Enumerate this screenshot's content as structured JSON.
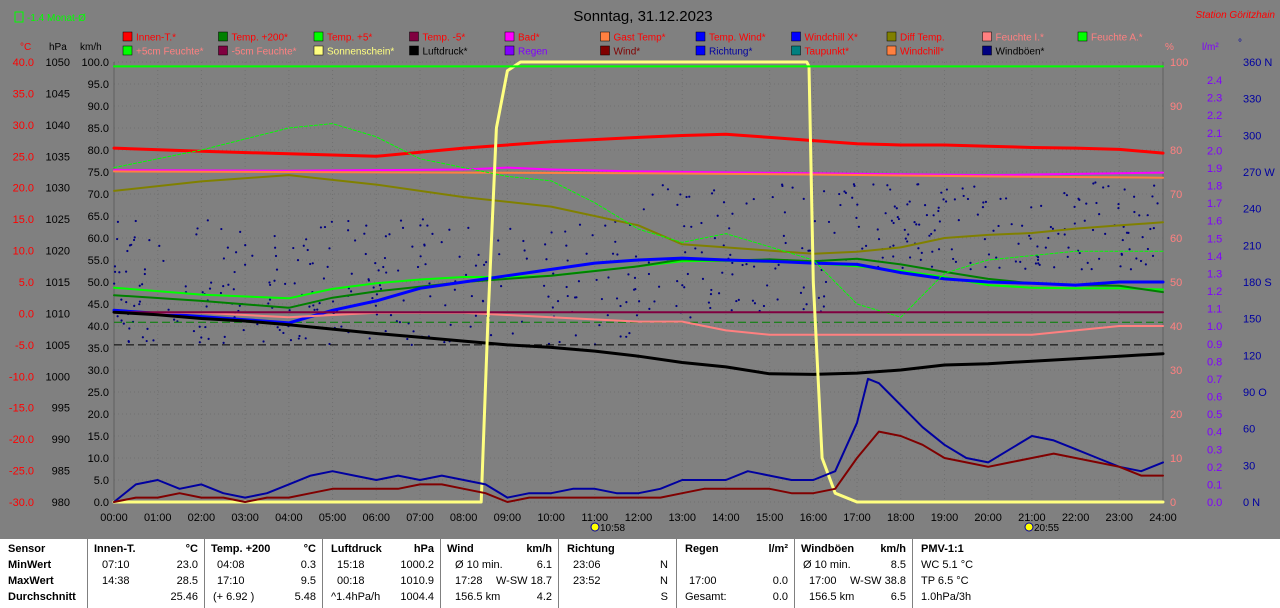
{
  "header": {
    "month_indicator": "-1.4 Monat-Ø",
    "date_title": "Sonntag, 31.12.2023",
    "station": "Station Göritzhain"
  },
  "legend": [
    {
      "label": "Innen-T.*",
      "color": "#ff0000",
      "text": "#ff0000"
    },
    {
      "label": "Temp. +200*",
      "color": "#008000",
      "text": "#ff0000"
    },
    {
      "label": "Temp. +5*",
      "color": "#00ff00",
      "text": "#ff0000"
    },
    {
      "label": "Temp. -5*",
      "color": "#800040",
      "text": "#ff0000"
    },
    {
      "label": "Bad*",
      "color": "#ff00ff",
      "text": "#ff0000"
    },
    {
      "label": "Gast Temp*",
      "color": "#ff8040",
      "text": "#ff0000"
    },
    {
      "label": "Temp. Wind*",
      "color": "#0000ff",
      "text": "#ff0000"
    },
    {
      "label": "Windchill X*",
      "color": "#0000ff",
      "text": "#ff0000"
    },
    {
      "label": "Diff Temp.",
      "color": "#808000",
      "text": "#ff0000"
    },
    {
      "label": "Feuchte I.*",
      "color": "#ff8080",
      "text": "#ff8080"
    },
    {
      "label": "Feuchte A.*",
      "color": "#00ff00",
      "text": "#ff8080"
    },
    {
      "label": "+5cm Feuchte*",
      "color": "#00ff00",
      "text": "#ff8080"
    },
    {
      "label": "-5cm Feuchte*",
      "color": "#800040",
      "text": "#ff8080"
    },
    {
      "label": "Sonnenschein*",
      "color": "#ffff80",
      "text": "#ffff80"
    },
    {
      "label": "Luftdruck*",
      "color": "#000000",
      "text": "#000000"
    },
    {
      "label": "Regen",
      "color": "#8000ff",
      "text": "#8000ff"
    },
    {
      "label": "Wind*",
      "color": "#800000",
      "text": "#800000"
    },
    {
      "label": "Richtung*",
      "color": "#0000ff",
      "text": "#0000a0"
    },
    {
      "label": "Taupunkt*",
      "color": "#008080",
      "text": "#ff0000"
    },
    {
      "label": "Windchill*",
      "color": "#ff8040",
      "text": "#ff0000"
    },
    {
      "label": "Windböen*",
      "color": "#000080",
      "text": "#000000"
    }
  ],
  "axes": {
    "temp_unit": "°C",
    "hpa_unit": "hPa",
    "kmh_unit": "km/h",
    "pct_unit": "%",
    "rain_unit": "l/m²",
    "deg_unit": "°",
    "temp_ticks": [
      "40.0",
      "35.0",
      "30.0",
      "25.0",
      "20.0",
      "15.0",
      "10.0",
      "5.0",
      "0.0",
      "-5.0",
      "-10.0",
      "-15.0",
      "-20.0",
      "-25.0",
      "-30.0"
    ],
    "hpa_ticks": [
      "1050",
      "1045",
      "1040",
      "1035",
      "1030",
      "1025",
      "1020",
      "1015",
      "1010",
      "1005",
      "1000",
      "995",
      "990",
      "985",
      "980"
    ],
    "kmh_ticks": [
      "100.0",
      "95.0",
      "90.0",
      "85.0",
      "80.0",
      "75.0",
      "70.0",
      "65.0",
      "60.0",
      "55.0",
      "50.0",
      "45.0",
      "40.0",
      "35.0",
      "30.0",
      "25.0",
      "20.0",
      "15.0",
      "10.0",
      "5.0",
      "0.0"
    ],
    "pct_ticks": [
      "100",
      "90",
      "80",
      "70",
      "60",
      "50",
      "40",
      "30",
      "20",
      "10",
      "0"
    ],
    "rain_ticks": [
      "2.4",
      "2.3",
      "2.2",
      "2.1",
      "2.0",
      "1.9",
      "1.8",
      "1.7",
      "1.6",
      "1.5",
      "1.4",
      "1.3",
      "1.2",
      "1.1",
      "1.0",
      "0.9",
      "0.8",
      "0.7",
      "0.6",
      "0.5",
      "0.4",
      "0.3",
      "0.2",
      "0.1",
      "0.0"
    ],
    "deg_ticks": [
      "360 N",
      "330",
      "300",
      "270 W",
      "240",
      "210",
      "180 S",
      "150",
      "120",
      "90 O",
      "60",
      "30",
      "0 N"
    ],
    "time_ticks": [
      "00:00",
      "01:00",
      "02:00",
      "03:00",
      "04:00",
      "05:00",
      "06:00",
      "07:00",
      "08:00",
      "09:00",
      "10:00",
      "11:00",
      "12:00",
      "13:00",
      "14:00",
      "15:00",
      "16:00",
      "17:00",
      "18:00",
      "19:00",
      "20:00",
      "21:00",
      "22:00",
      "23:00",
      "24:00"
    ],
    "sunrise": "10:58",
    "sunset": "20:55"
  },
  "chart_data": {
    "type": "line",
    "title": "Sonntag, 31.12.2023",
    "x_unit": "hour",
    "ylim_temp": [
      -30,
      40
    ],
    "ylim_hpa": [
      980,
      1050
    ],
    "ylim_kmh": [
      0,
      100
    ],
    "ylim_pct": [
      0,
      100
    ],
    "series": [
      {
        "name": "Innen-T.*",
        "axis": "temp",
        "color": "#ff0000",
        "width": 3,
        "x": [
          0,
          2,
          4,
          6,
          8,
          10,
          12,
          13,
          14,
          15,
          16,
          17,
          18,
          19,
          20,
          21,
          22,
          23,
          24
        ],
        "y": [
          26.3,
          25.8,
          25.4,
          25.0,
          26.3,
          27.3,
          28.0,
          28.3,
          28.5,
          28.0,
          27.5,
          27.0,
          26.8,
          26.8,
          26.6,
          26.4,
          26.3,
          26.1,
          25.5
        ]
      },
      {
        "name": "Bad*",
        "axis": "temp",
        "color": "#ff00ff",
        "width": 2,
        "x": [
          0,
          4,
          8,
          9,
          10,
          12,
          16,
          20,
          24
        ],
        "y": [
          22.8,
          22.7,
          22.9,
          23.2,
          22.9,
          22.6,
          22.3,
          22.0,
          22.4
        ]
      },
      {
        "name": "Gast Temp*",
        "axis": "temp",
        "color": "#ff8040",
        "width": 2,
        "x": [
          0,
          4,
          8,
          12,
          16,
          20,
          24
        ],
        "y": [
          22.6,
          22.5,
          22.4,
          22.3,
          22.1,
          21.8,
          21.6
        ]
      },
      {
        "name": "Diff Temp.",
        "axis": "temp",
        "color": "#808000",
        "width": 2,
        "x": [
          0,
          2,
          4,
          6,
          8,
          10,
          12,
          13,
          14,
          15,
          16,
          17,
          18,
          19,
          20,
          21,
          22,
          23,
          24
        ],
        "y": [
          19.5,
          21.0,
          22.0,
          20.5,
          18.5,
          17.0,
          14.0,
          11.0,
          10.5,
          10.0,
          9.5,
          9.8,
          10.5,
          12.0,
          12.5,
          12.8,
          13.5,
          14.0,
          14.5
        ]
      },
      {
        "name": "Temp. +5*",
        "axis": "temp",
        "color": "#00ff00",
        "width": 2,
        "x": [
          0,
          2,
          4,
          5,
          6,
          7,
          8,
          9,
          10,
          11,
          12,
          13,
          14,
          15,
          16,
          17,
          18,
          19,
          20,
          21,
          22,
          23,
          24
        ],
        "y": [
          4.1,
          3.0,
          2.4,
          3.9,
          4.8,
          5.4,
          5.8,
          5.8,
          6.0,
          6.8,
          7.5,
          8.3,
          8.4,
          8.2,
          8.0,
          7.5,
          6.8,
          5.8,
          4.5,
          4.1,
          4.0,
          4.0,
          3.8
        ]
      },
      {
        "name": "Temp. +200*",
        "axis": "temp",
        "color": "#008000",
        "width": 2,
        "x": [
          0,
          2,
          4,
          5,
          6,
          8,
          10,
          12,
          13,
          14,
          15,
          16,
          17,
          18,
          19,
          20,
          21,
          22,
          23,
          24
        ],
        "y": [
          2.9,
          2.0,
          0.9,
          2.5,
          3.5,
          5.0,
          6.0,
          7.5,
          8.6,
          8.4,
          8.6,
          8.3,
          8.7,
          7.8,
          6.6,
          5.5,
          4.8,
          4.5,
          4.4,
          3.4
        ]
      },
      {
        "name": "Temp. Wind*",
        "axis": "temp",
        "color": "#0000ff",
        "width": 3,
        "x": [
          0,
          1,
          2,
          3,
          4,
          5,
          6,
          7,
          8,
          9,
          10,
          11,
          12,
          13,
          14,
          15,
          16,
          17,
          18,
          19,
          20,
          21,
          22,
          23,
          24
        ],
        "y": [
          0.5,
          0.0,
          -0.5,
          -1.0,
          -1.5,
          0.5,
          2.0,
          4.0,
          5.0,
          6.0,
          7.0,
          8.0,
          8.5,
          8.8,
          8.5,
          8.3,
          8.0,
          7.8,
          6.5,
          5.5,
          5.0,
          4.8,
          4.5,
          5.0,
          5.0
        ]
      },
      {
        "name": "Feuchte I.*",
        "axis": "pct",
        "color": "#ff8080",
        "width": 2,
        "x": [
          0,
          2,
          4,
          6,
          8,
          10,
          12,
          13,
          14,
          15,
          16,
          17,
          18,
          19,
          20,
          21,
          22,
          23,
          24
        ],
        "y": [
          43,
          43,
          42,
          43,
          43,
          42,
          41,
          41,
          39,
          38,
          38,
          38,
          38,
          38,
          38,
          38,
          39,
          40,
          40
        ]
      },
      {
        "name": "+5cm Feuchte*",
        "axis": "pct",
        "color": "#00ff00",
        "width": 1,
        "dash": "3,2",
        "x": [
          0,
          2,
          4,
          5,
          6,
          7,
          8,
          9,
          10,
          11,
          12,
          13,
          14,
          15,
          16,
          17,
          18,
          19,
          20,
          21,
          22,
          23,
          24
        ],
        "y": [
          76,
          80,
          85,
          86,
          83,
          78,
          76,
          74,
          73,
          68,
          62,
          59,
          61,
          58,
          55,
          45,
          42,
          52,
          55,
          56,
          57,
          57,
          57
        ]
      },
      {
        "name": "Temp. -5*",
        "axis": "temp",
        "color": "#800040",
        "width": 2,
        "x": [
          0,
          24
        ],
        "y": [
          0.2,
          0.2
        ]
      },
      {
        "name": "Luftdruck*",
        "axis": "hpa",
        "color": "#000000",
        "width": 3,
        "x": [
          0,
          1,
          2,
          3,
          4,
          5,
          6,
          7,
          8,
          9,
          10,
          11,
          12,
          13,
          14,
          15,
          16,
          17,
          18,
          19,
          20,
          21,
          22,
          23,
          24
        ],
        "y": [
          1010.2,
          1009.8,
          1009.2,
          1008.8,
          1008.2,
          1007.5,
          1006.8,
          1006.2,
          1005.6,
          1005.0,
          1004.6,
          1004.0,
          1003.2,
          1002.2,
          1001.5,
          1000.4,
          1000.3,
          1000.5,
          1001.0,
          1001.8,
          1002.0,
          1002.4,
          1002.8,
          1003.2,
          1003.6
        ]
      },
      {
        "name": "Sonnenschein*",
        "axis": "kmh",
        "color": "#ffff80",
        "width": 3,
        "x": [
          0,
          8.4,
          8.55,
          8.75,
          9,
          9.3,
          15.85,
          15.9,
          16.0,
          16.2,
          16.5,
          17,
          24
        ],
        "y": [
          0,
          0,
          40,
          85,
          98,
          100,
          100,
          99,
          50,
          10,
          2,
          0,
          0
        ]
      },
      {
        "name": "Windböen*",
        "axis": "kmh",
        "color": "#0000a0",
        "width": 2,
        "x": [
          0,
          0.5,
          1,
          1.5,
          2,
          2.5,
          3,
          3.5,
          4,
          4.5,
          5,
          5.5,
          6,
          6.5,
          7,
          7.5,
          8,
          8.5,
          9,
          9.5,
          10,
          10.5,
          11,
          11.5,
          12,
          12.5,
          13,
          13.5,
          14,
          14.5,
          15,
          15.5,
          16,
          16.5,
          17,
          17.25,
          17.5,
          18,
          18.5,
          19,
          19.5,
          20,
          20.5,
          21,
          21.5,
          22,
          22.5,
          23,
          23.5,
          24
        ],
        "y": [
          0,
          4,
          5,
          3,
          4,
          2,
          1,
          2,
          4,
          6,
          7,
          6,
          5,
          6,
          5,
          6,
          5,
          4,
          1,
          2,
          2,
          3,
          3,
          2,
          2,
          3,
          5,
          5,
          5,
          7,
          6,
          5,
          5,
          7,
          18,
          28,
          27,
          22,
          17,
          13,
          10,
          9,
          12,
          15,
          14,
          12,
          10,
          8,
          7,
          9
        ]
      },
      {
        "name": "Wind*",
        "axis": "kmh",
        "color": "#800000",
        "width": 2,
        "x": [
          0,
          0.5,
          1,
          1.5,
          2,
          2.5,
          3,
          3.5,
          4,
          4.5,
          5,
          5.5,
          6,
          6.5,
          7,
          7.5,
          8,
          8.5,
          9,
          9.5,
          10,
          10.5,
          11,
          11.5,
          12,
          12.5,
          13,
          13.5,
          14,
          14.5,
          15,
          15.5,
          16,
          16.5,
          17,
          17.5,
          18,
          18.5,
          19,
          19.5,
          20,
          20.5,
          21,
          21.5,
          22,
          22.5,
          23,
          23.5,
          24
        ],
        "y": [
          0,
          1,
          1,
          2,
          1,
          1,
          0,
          1,
          1,
          2,
          3,
          3,
          3,
          3,
          4,
          4,
          3,
          2,
          0,
          1,
          1,
          1,
          1,
          1,
          1,
          1,
          2,
          3,
          3,
          3,
          3,
          2,
          2,
          3,
          10,
          16,
          15,
          13,
          10,
          9,
          8,
          9,
          10,
          11,
          10,
          9,
          8,
          6,
          6
        ]
      },
      {
        "name": "Feuchte A.*",
        "axis": "pct",
        "color": "#00ff00",
        "width": 2,
        "x": [
          0,
          24
        ],
        "y": [
          99,
          99
        ]
      }
    ],
    "references": [
      {
        "name": "Diff Temp ref dashed",
        "axis": "temp",
        "value": -1.4,
        "color": "#008000",
        "dash": "8,4"
      },
      {
        "name": "Luftdruck ref dashed",
        "axis": "hpa",
        "value": 1005.0,
        "color": "#000000",
        "dash": "8,4"
      }
    ],
    "richtung_scatter_seed": 7
  },
  "table": {
    "sensor": {
      "title": "Sensor",
      "rows": [
        "MinWert",
        "MaxWert",
        "Durchschnitt"
      ]
    },
    "innen": {
      "title": "Innen-T.",
      "unit": "°C",
      "rows": [
        [
          "07:10",
          "23.0"
        ],
        [
          "14:38",
          "28.5"
        ],
        [
          "",
          "25.46"
        ]
      ]
    },
    "temp200": {
      "title": "Temp. +200",
      "unit": "°C",
      "rows": [
        [
          "04:08",
          "0.3"
        ],
        [
          "17:10",
          "9.5"
        ],
        [
          "(+ 6.92 )",
          "5.48"
        ]
      ]
    },
    "luftdruck": {
      "title": "Luftdruck",
      "unit": "hPa",
      "rows": [
        [
          "15:18",
          "1000.2"
        ],
        [
          "00:18",
          "1010.9"
        ],
        [
          "^1.4hPa/h",
          "1004.4"
        ]
      ]
    },
    "wind": {
      "title": "Wind",
      "unit": "km/h",
      "rows": [
        [
          "Ø 10 min.",
          "",
          "6.1"
        ],
        [
          "17:28",
          "W-SW",
          "18.7"
        ],
        [
          "156.5 km",
          "",
          "4.2"
        ]
      ]
    },
    "richtung": {
      "title": "Richtung",
      "rows": [
        [
          "23:06",
          "N"
        ],
        [
          "23:52",
          "N"
        ],
        [
          "",
          "S"
        ]
      ]
    },
    "regen": {
      "title": "Regen",
      "unit": "l/m²",
      "rows": [
        [
          "",
          ""
        ],
        [
          "17:00",
          "0.0"
        ],
        [
          "Gesamt:",
          "0.0"
        ]
      ]
    },
    "windboeen": {
      "title": "Windböen",
      "unit": "km/h",
      "rows": [
        [
          "Ø 10 min.",
          "",
          "8.5"
        ],
        [
          "17:00",
          "W-SW",
          "38.8"
        ],
        [
          "156.5 km",
          "",
          "6.5"
        ]
      ]
    },
    "pmv": {
      "title": "PMV-1:1",
      "rows": [
        "WC 5.1 °C",
        "TP 6.5 °C",
        "1.0hPa/3h"
      ]
    }
  }
}
